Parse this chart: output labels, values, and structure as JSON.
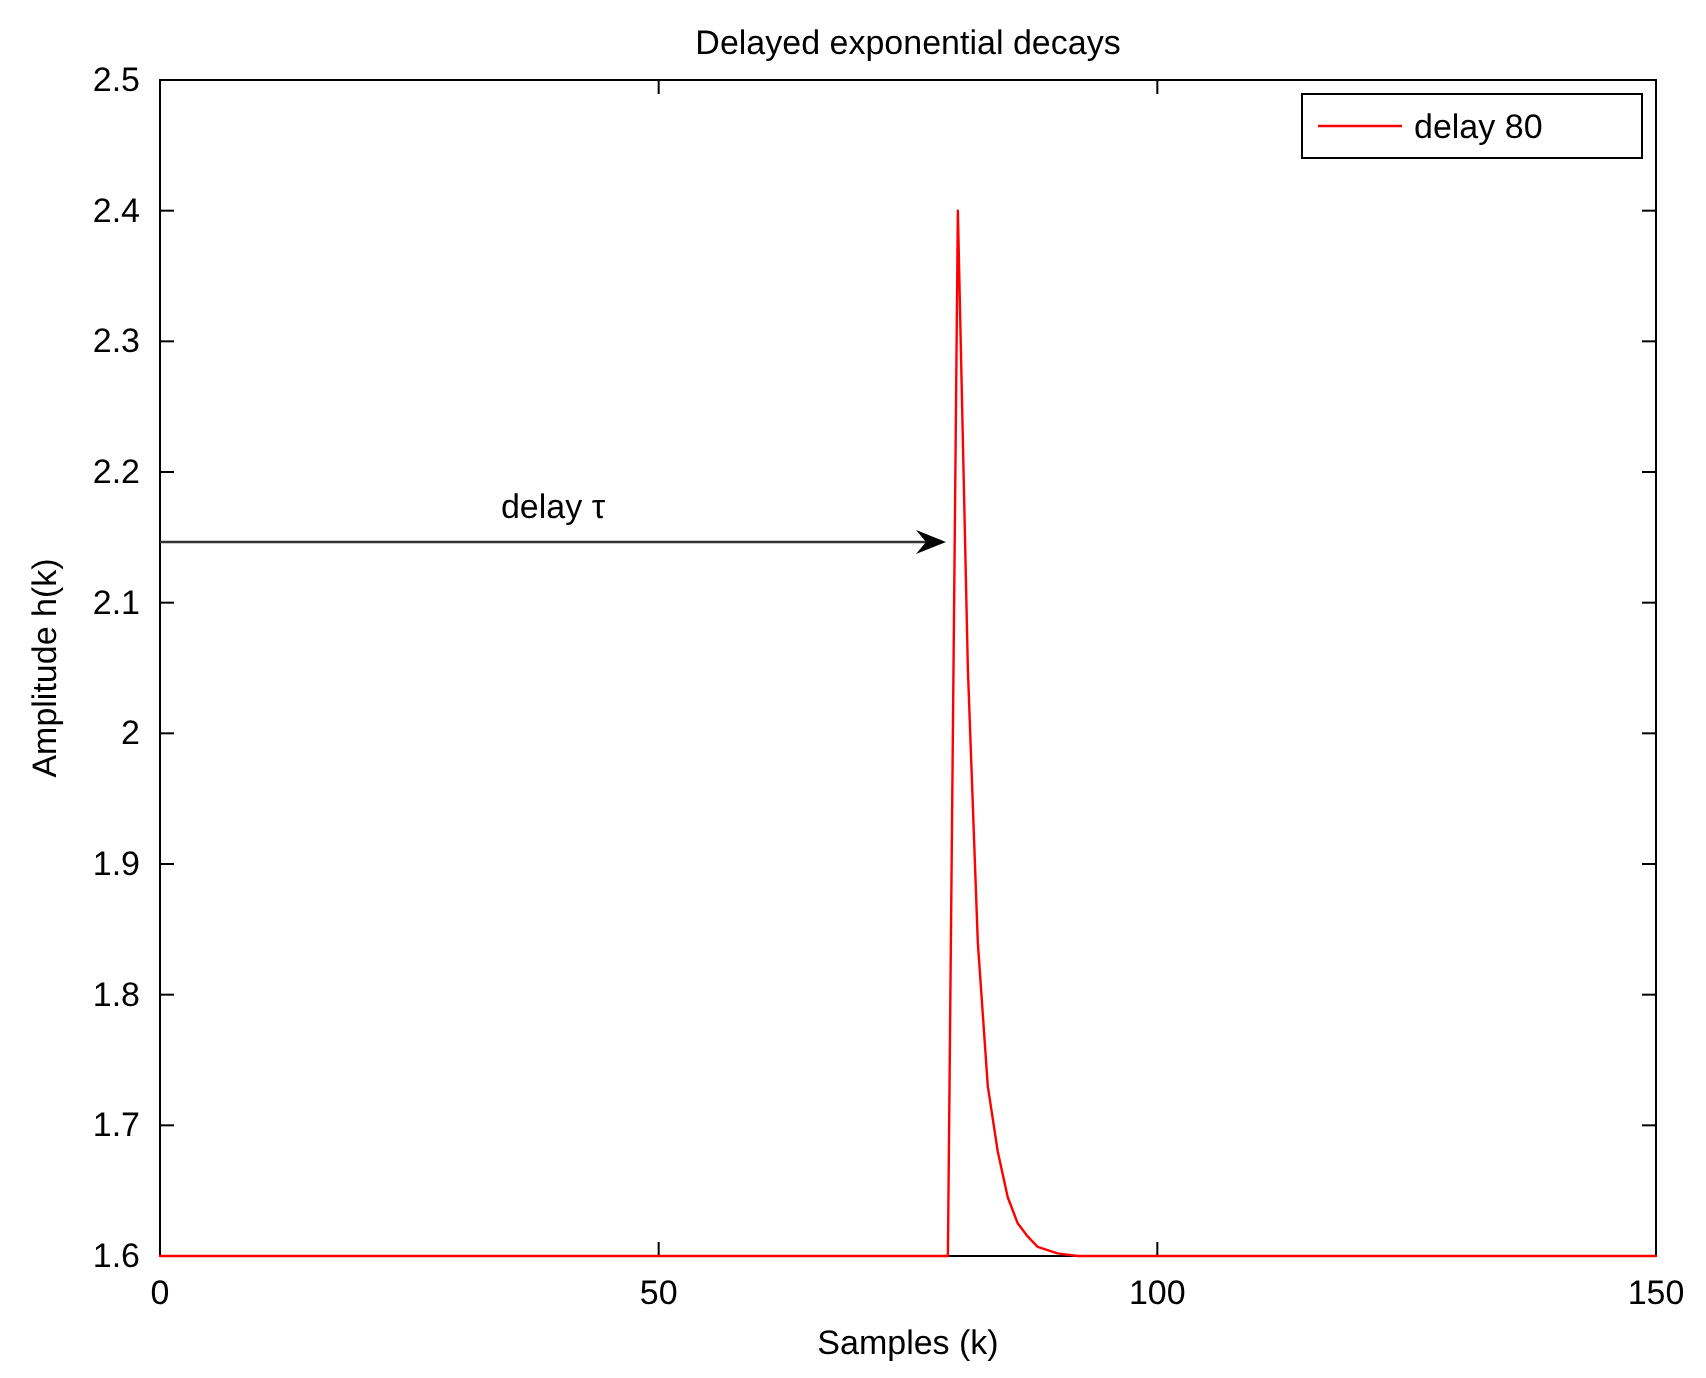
{
  "chart_data": {
    "type": "line",
    "title": "Delayed exponential decays",
    "xlabel": "Samples (k)",
    "ylabel": "Amplitude h(k)",
    "annotations": [
      "delay τ"
    ],
    "xlim": [
      0,
      150
    ],
    "xticks": [
      0,
      50,
      100,
      150
    ],
    "ylim": [
      1.6,
      2.5
    ],
    "yticks": [
      1.6,
      1.7,
      1.8,
      1.9,
      2,
      2.1,
      2.2,
      2.3,
      2.4,
      2.5
    ],
    "grid": false,
    "legend": "top right",
    "marker": "none",
    "line_style": "solid",
    "series": [
      {
        "name": "delay 80",
        "color": "#ff0000",
        "x": [
          0,
          79,
          80,
          81,
          82,
          83,
          84,
          85,
          86,
          87,
          88,
          90,
          92,
          95,
          150
        ],
        "values": [
          1.6,
          1.6,
          2.4,
          2.05,
          1.84,
          1.73,
          1.68,
          1.645,
          1.625,
          1.615,
          1.607,
          1.602,
          1.6,
          1.6,
          1.6
        ]
      }
    ]
  }
}
